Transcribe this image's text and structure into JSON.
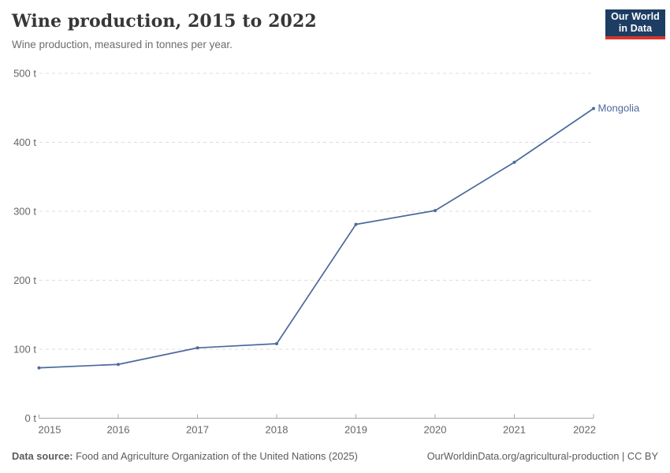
{
  "header": {
    "title": "Wine production, 2015 to 2022",
    "subtitle": "Wine production, measured in tonnes per year.",
    "logo": {
      "line1": "Our World",
      "line2": "in Data"
    }
  },
  "chart_data": {
    "type": "line",
    "title": "Wine production, 2015 to 2022",
    "subtitle": "Wine production, measured in tonnes per year.",
    "x": [
      2015,
      2016,
      2017,
      2018,
      2019,
      2020,
      2021,
      2022
    ],
    "series": [
      {
        "name": "Mongolia",
        "values": [
          73,
          78,
          102,
          108,
          281,
          301,
          371,
          449
        ],
        "color": "#4c6a9c"
      }
    ],
    "xlabel": "",
    "ylabel": "",
    "ylim": [
      0,
      500
    ],
    "yticks": [
      0,
      100,
      200,
      300,
      400,
      500
    ],
    "ytick_labels": [
      "0 t",
      "100 t",
      "200 t",
      "300 t",
      "400 t",
      "500 t"
    ],
    "xtick_labels": [
      "2015",
      "2016",
      "2017",
      "2018",
      "2019",
      "2020",
      "2021",
      "2022"
    ],
    "grid": "horizontal-dashed",
    "legend": "end-of-line-label",
    "unit": "tonnes"
  },
  "footer": {
    "source_label": "Data source:",
    "source_text": "Food and Agriculture Organization of the United Nations (2025)",
    "url": "OurWorldinData.org/agricultural-production",
    "license": " | CC BY"
  },
  "colors": {
    "line": "#4c6a9c",
    "grid": "#dedede",
    "axis": "#a5a5a5",
    "tick_label": "#666666",
    "title": "#383636",
    "subtitle": "#6d6d6d",
    "footer_text": "#5b5b5b",
    "logo_bg": "#1d3d63",
    "logo_accent": "#d8352c"
  }
}
